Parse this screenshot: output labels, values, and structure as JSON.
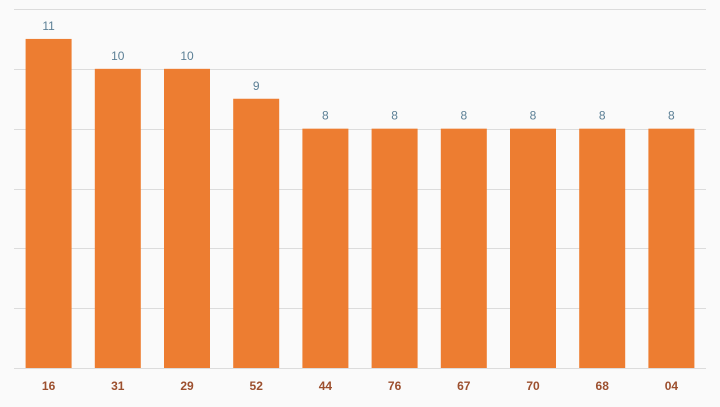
{
  "chart_data": {
    "type": "bar",
    "categories": [
      "16",
      "31",
      "29",
      "52",
      "44",
      "76",
      "67",
      "70",
      "68",
      "04"
    ],
    "values": [
      11,
      10,
      10,
      9,
      8,
      8,
      8,
      8,
      8,
      8
    ],
    "color": "#ed7d31",
    "ylim": [
      0,
      12
    ],
    "yticks": [
      0,
      2,
      4,
      6,
      8,
      10,
      12
    ],
    "grid": true
  }
}
